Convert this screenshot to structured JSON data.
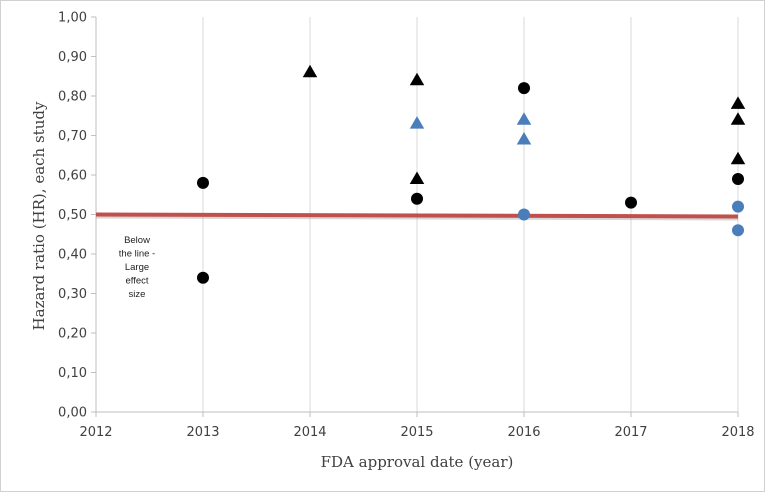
{
  "chart_data": {
    "type": "scatter",
    "xlabel": "FDA approval date (year)",
    "ylabel": "Hazard ratio (HR), each study",
    "xlim": [
      2012,
      2018
    ],
    "ylim": [
      0,
      1
    ],
    "x_ticks": [
      "2012",
      "2013",
      "2014",
      "2015",
      "2016",
      "2017",
      "2018"
    ],
    "y_ticks": [
      "0,00",
      "0,10",
      "0,20",
      "0,30",
      "0,40",
      "0,50",
      "0,60",
      "0,70",
      "0,80",
      "0,90",
      "1,00"
    ],
    "grid": "vertical",
    "reference_line": {
      "y_start": 0.5,
      "y_end": 0.495,
      "color": "#c0504d"
    },
    "annotation": {
      "lines": [
        "Below",
        "the line -",
        "Large",
        "effect",
        "size"
      ]
    },
    "series": [
      {
        "marker": "circle",
        "color": "#000000",
        "points": [
          [
            2013,
            0.58
          ],
          [
            2013,
            0.34
          ],
          [
            2015,
            0.54
          ],
          [
            2016,
            0.82
          ],
          [
            2017,
            0.53
          ],
          [
            2018,
            0.59
          ]
        ]
      },
      {
        "marker": "triangle",
        "color": "#000000",
        "points": [
          [
            2014,
            0.86
          ],
          [
            2015,
            0.84
          ],
          [
            2015,
            0.59
          ],
          [
            2018,
            0.78
          ],
          [
            2018,
            0.74
          ],
          [
            2018,
            0.64
          ]
        ]
      },
      {
        "marker": "triangle",
        "color": "#4a7ebb",
        "points": [
          [
            2015,
            0.73
          ],
          [
            2016,
            0.74
          ],
          [
            2016,
            0.69
          ]
        ]
      },
      {
        "marker": "circle",
        "color": "#4a7ebb",
        "points": [
          [
            2016,
            0.5
          ],
          [
            2018,
            0.52
          ],
          [
            2018,
            0.46
          ]
        ]
      }
    ]
  }
}
